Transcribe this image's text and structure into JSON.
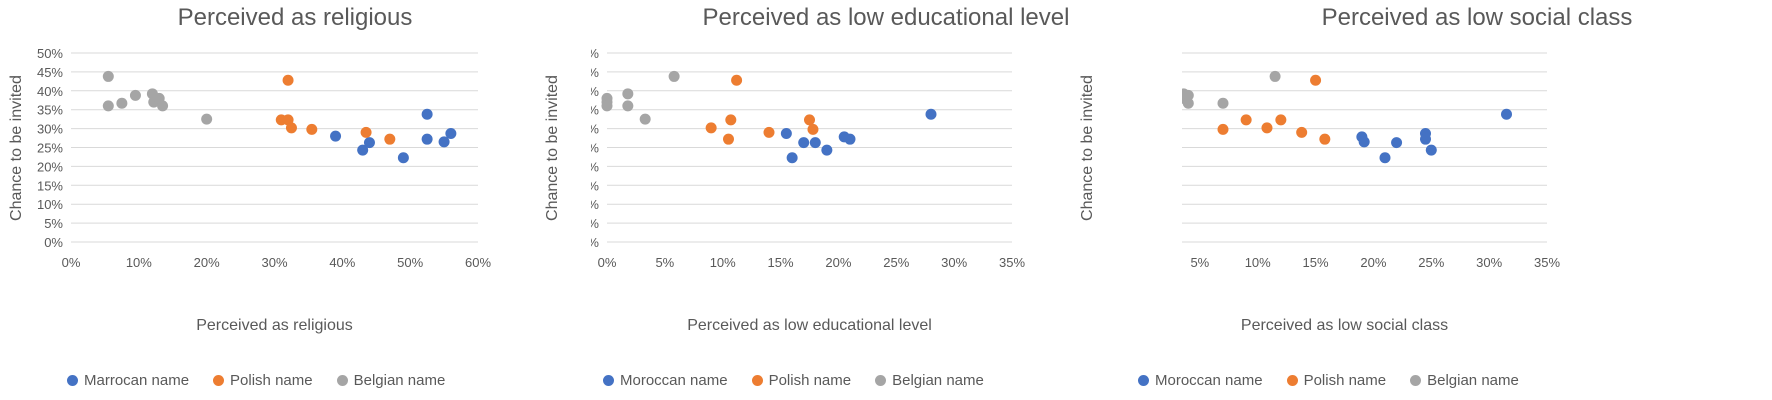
{
  "colors": {
    "moroccan": "#4472C4",
    "polish": "#ED7D31",
    "belgian": "#A5A5A5",
    "grid": "#D9D9D9",
    "text": "#595959"
  },
  "chart_data": [
    {
      "type": "scatter",
      "title": "Perceived as religious",
      "xlabel": "Perceived as religious",
      "ylabel": "Chance to be invited",
      "xlim": [
        0,
        0.6
      ],
      "xstep": 0.1,
      "ylim": [
        0,
        0.5
      ],
      "ystep": 0.05,
      "grid": "horizontal",
      "legend": "bottom",
      "series": [
        {
          "name": "Marrocan name",
          "color": "#4472C4",
          "points": [
            [
              0.39,
              0.28
            ],
            [
              0.43,
              0.243
            ],
            [
              0.44,
              0.263
            ],
            [
              0.49,
              0.223
            ],
            [
              0.525,
              0.338
            ],
            [
              0.525,
              0.272
            ],
            [
              0.55,
              0.265
            ],
            [
              0.56,
              0.287
            ]
          ]
        },
        {
          "name": "Polish name",
          "color": "#ED7D31",
          "points": [
            [
              0.32,
              0.428
            ],
            [
              0.31,
              0.323
            ],
            [
              0.32,
              0.323
            ],
            [
              0.325,
              0.302
            ],
            [
              0.355,
              0.298
            ],
            [
              0.435,
              0.29
            ],
            [
              0.47,
              0.272
            ]
          ]
        },
        {
          "name": "Belgian name",
          "color": "#A5A5A5",
          "points": [
            [
              0.055,
              0.438
            ],
            [
              0.055,
              0.36
            ],
            [
              0.075,
              0.367
            ],
            [
              0.095,
              0.388
            ],
            [
              0.12,
              0.392
            ],
            [
              0.122,
              0.37
            ],
            [
              0.13,
              0.38
            ],
            [
              0.135,
              0.36
            ],
            [
              0.2,
              0.325
            ]
          ]
        }
      ]
    },
    {
      "type": "scatter",
      "title": "Perceived as low educational level",
      "xlabel": "Perceived as low educational level",
      "ylabel": "Chance to be invited",
      "xlim": [
        0,
        0.35
      ],
      "xstep": 0.05,
      "ylim": [
        0,
        0.5
      ],
      "ystep": 0.05,
      "grid": "horizontal",
      "legend": "bottom",
      "series": [
        {
          "name": "Moroccan name",
          "color": "#4472C4",
          "points": [
            [
              0.155,
              0.287
            ],
            [
              0.16,
              0.223
            ],
            [
              0.17,
              0.263
            ],
            [
              0.18,
              0.263
            ],
            [
              0.19,
              0.243
            ],
            [
              0.205,
              0.278
            ],
            [
              0.21,
              0.272
            ],
            [
              0.28,
              0.338
            ]
          ]
        },
        {
          "name": "Polish name",
          "color": "#ED7D31",
          "points": [
            [
              0.09,
              0.302
            ],
            [
              0.105,
              0.272
            ],
            [
              0.107,
              0.323
            ],
            [
              0.112,
              0.428
            ],
            [
              0.14,
              0.29
            ],
            [
              0.175,
              0.323
            ],
            [
              0.178,
              0.298
            ]
          ]
        },
        {
          "name": "Belgian name",
          "color": "#A5A5A5",
          "points": [
            [
              0.0,
              0.38
            ],
            [
              0.0,
              0.37
            ],
            [
              0.0,
              0.36
            ],
            [
              0.018,
              0.392
            ],
            [
              0.018,
              0.36
            ],
            [
              0.033,
              0.325
            ],
            [
              0.058,
              0.438
            ]
          ]
        }
      ]
    },
    {
      "type": "scatter",
      "title": "Perceived as low social class",
      "xlabel": "Perceived as low social class",
      "ylabel": "Chance to be invited",
      "xlim": [
        0,
        0.35
      ],
      "xstep": 0.05,
      "ylim": [
        0,
        0.5
      ],
      "ystep": 0.05,
      "grid": "horizontal",
      "legend": "bottom",
      "series": [
        {
          "name": "Moroccan name",
          "color": "#4472C4",
          "points": [
            [
              0.19,
              0.278
            ],
            [
              0.192,
              0.265
            ],
            [
              0.21,
              0.223
            ],
            [
              0.22,
              0.263
            ],
            [
              0.245,
              0.287
            ],
            [
              0.245,
              0.272
            ],
            [
              0.25,
              0.243
            ],
            [
              0.315,
              0.338
            ]
          ]
        },
        {
          "name": "Polish name",
          "color": "#ED7D31",
          "points": [
            [
              0.07,
              0.298
            ],
            [
              0.09,
              0.323
            ],
            [
              0.108,
              0.302
            ],
            [
              0.12,
              0.323
            ],
            [
              0.138,
              0.29
            ],
            [
              0.15,
              0.428
            ],
            [
              0.158,
              0.272
            ]
          ]
        },
        {
          "name": "Belgian name",
          "color": "#A5A5A5",
          "points": [
            [
              0.0,
              0.36
            ],
            [
              0.016,
              0.325
            ],
            [
              0.034,
              0.38
            ],
            [
              0.036,
              0.392
            ],
            [
              0.04,
              0.388
            ],
            [
              0.04,
              0.367
            ],
            [
              0.07,
              0.367
            ],
            [
              0.115,
              0.438
            ]
          ]
        }
      ]
    }
  ]
}
